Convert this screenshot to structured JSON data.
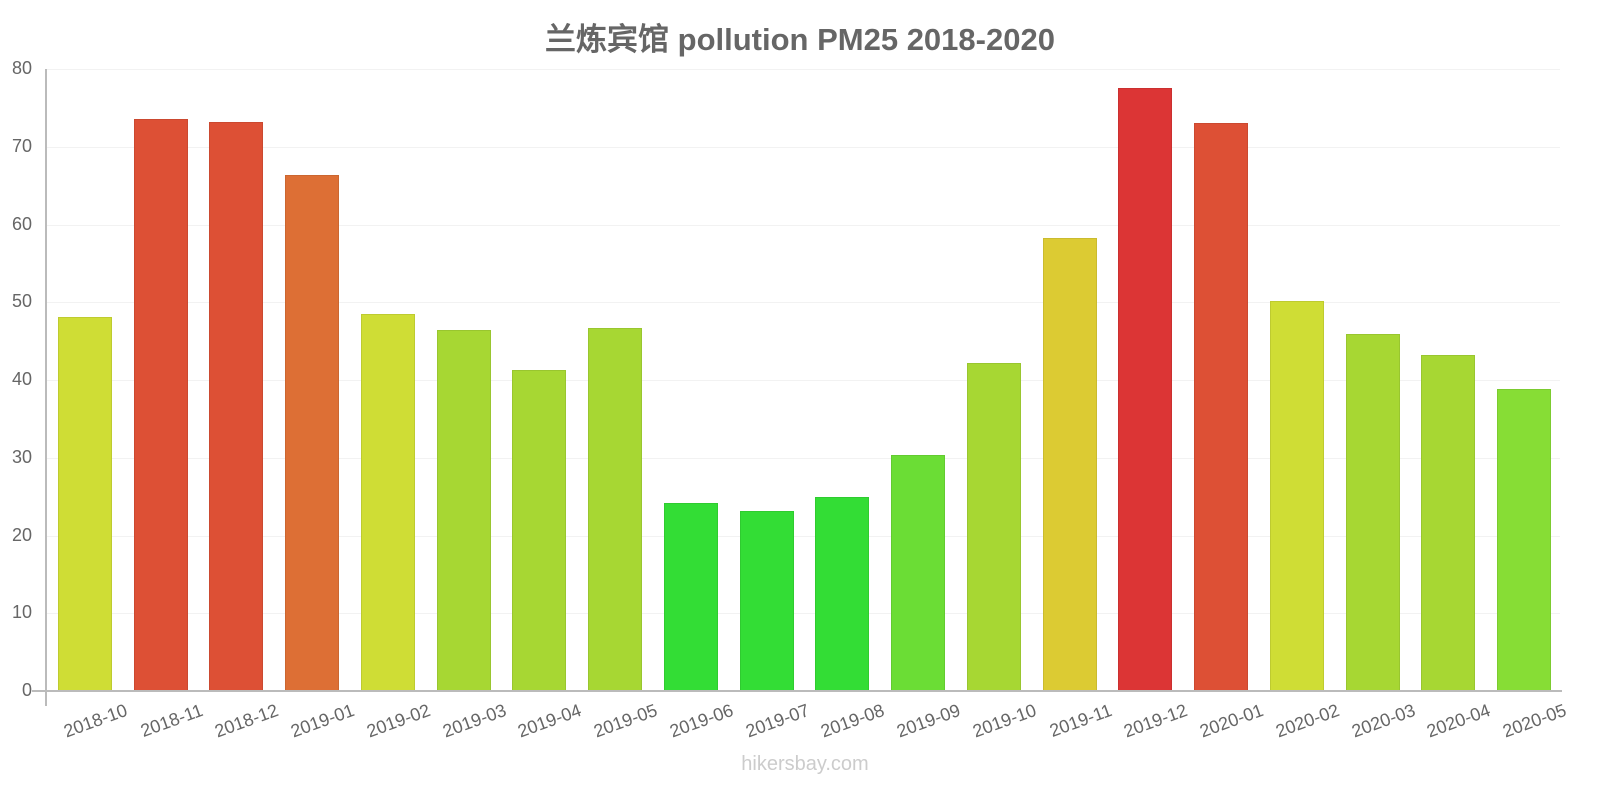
{
  "chart_data": {
    "type": "bar",
    "title": "兰炼宾馆 pollution PM25 2018-2020",
    "xlabel": "",
    "ylabel": "",
    "ylim": [
      0,
      80
    ],
    "yticks": [
      0,
      10,
      20,
      30,
      40,
      50,
      60,
      70,
      80
    ],
    "grid": true,
    "legend": null,
    "categories": [
      "2018-10",
      "2018-11",
      "2018-12",
      "2019-01",
      "2019-02",
      "2019-03",
      "2019-04",
      "2019-05",
      "2019-06",
      "2019-07",
      "2019-08",
      "2019-09",
      "2019-10",
      "2019-11",
      "2019-12",
      "2020-01",
      "2020-02",
      "2020-03",
      "2020-04",
      "2020-05"
    ],
    "values": [
      48.1,
      73.6,
      73.2,
      66.4,
      48.5,
      46.4,
      41.3,
      46.7,
      24.2,
      23.2,
      24.9,
      30.4,
      42.2,
      58.3,
      77.6,
      73.1,
      50.1,
      45.9,
      43.2,
      38.9
    ],
    "colors": [
      "#cfdd35",
      "#dd5035",
      "#dd5035",
      "#dd6f35",
      "#cfdd35",
      "#a7d733",
      "#a7d733",
      "#a7d733",
      "#33dd35",
      "#33dd35",
      "#33dd35",
      "#6bdd35",
      "#a7d733",
      "#dccb33",
      "#dc3535",
      "#dd5035",
      "#cfdd35",
      "#a7d733",
      "#a7d733",
      "#87dd35"
    ]
  },
  "watermark": "hikersbay.com"
}
